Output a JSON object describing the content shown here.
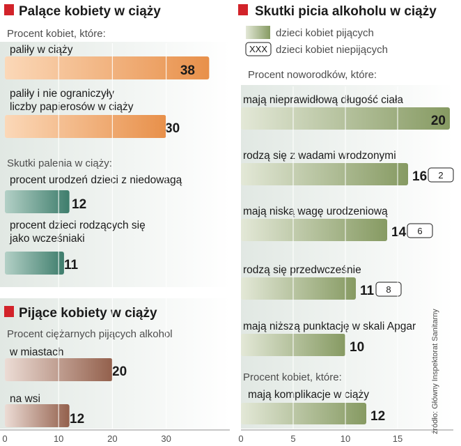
{
  "colors": {
    "smoking": "#e8904a",
    "smoking_effects": "#3e7d6c",
    "drinking": "#93604c",
    "alcohol": "#869a62",
    "bullet": "#d2232a",
    "panel": "#e6ebe7"
  },
  "chart_data": [
    {
      "type": "bar",
      "title": "Palące kobiety w ciąży",
      "subtitle": "Procent kobiet, które:",
      "categories": [
        "paliły w ciąży",
        "paliły i nie ograniczyły liczby papierosów w ciąży"
      ],
      "values": [
        38,
        30
      ],
      "xlim": [
        0,
        38
      ]
    },
    {
      "type": "bar",
      "subtitle": "Skutki palenia w ciąży:",
      "categories": [
        "procent urodzeń dzieci z niedowagą",
        "procent dzieci rodzących się jako wcześniaki"
      ],
      "values": [
        12,
        11
      ],
      "xlim": [
        0,
        38
      ]
    },
    {
      "type": "bar",
      "title": "Pijące kobiety w ciąży",
      "subtitle": "Procent ciężarnych pijących alkohol",
      "categories": [
        "w miastach",
        "na wsi"
      ],
      "values": [
        20,
        12
      ],
      "xlim": [
        0,
        38
      ],
      "xticks": [
        0,
        10,
        20,
        30
      ]
    },
    {
      "type": "bar",
      "title": "Skutki picia alkoholu w ciąży",
      "subtitle": "Procent noworodków, które:",
      "legend": [
        {
          "name": "dzieci kobiet pijących"
        },
        {
          "name": "dzieci kobiet niepijących",
          "box_text": "XXX"
        }
      ],
      "categories": [
        "mają nieprawidłową długość ciała",
        "rodzą się z wadami wrodzonymi",
        "mają niską wagę urodzeniową",
        "rodzą się przedwcześnie",
        "mają niższą punktację w skali Apgar"
      ],
      "series": [
        {
          "name": "dzieci kobiet pijących",
          "values": [
            20,
            16,
            14,
            11,
            10
          ]
        },
        {
          "name": "dzieci kobiet niepijących",
          "values": [
            null,
            2,
            6,
            8,
            null
          ]
        }
      ],
      "extra_subtitle": "Procent kobiet, które:",
      "extra": {
        "category": "mają komplikacje w ciąży",
        "value": 12
      },
      "xlim": [
        0,
        20
      ],
      "xticks": [
        0,
        5,
        10,
        15
      ]
    }
  ],
  "source": "źródło: Główny Inspektorat Sanitarny"
}
